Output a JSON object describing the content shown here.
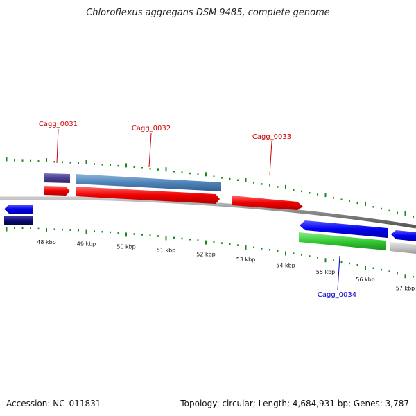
{
  "title": "Chloroflexus aggregans DSM 9485, complete genome",
  "footer": {
    "accession": "Accession: NC_011831",
    "summary": "Topology: circular; Length: 4,684,931 bp; Genes: 3,787"
  },
  "colors": {
    "tick": "#1a8a1a",
    "backbone": "#888888",
    "label_forward": "#cc0000",
    "label_reverse": "#0000cc"
  },
  "ticks": [
    {
      "label": "48 kbp",
      "kb": 48
    },
    {
      "label": "49 kbp",
      "kb": 49
    },
    {
      "label": "50 kbp",
      "kb": 50
    },
    {
      "label": "51 kbp",
      "kb": 51
    },
    {
      "label": "52 kbp",
      "kb": 52
    },
    {
      "label": "53 kbp",
      "kb": 53
    },
    {
      "label": "54 kbp",
      "kb": 54
    },
    {
      "label": "55 kbp",
      "kb": 55
    },
    {
      "label": "56 kbp",
      "kb": 56
    },
    {
      "label": "57 kbp",
      "kb": 57
    }
  ],
  "gene_labels": [
    {
      "text": "Cagg_0031",
      "strand": "forward"
    },
    {
      "text": "Cagg_0032",
      "strand": "forward"
    },
    {
      "text": "Cagg_0033",
      "strand": "forward"
    },
    {
      "text": "Cagg_0034",
      "strand": "reverse"
    }
  ]
}
